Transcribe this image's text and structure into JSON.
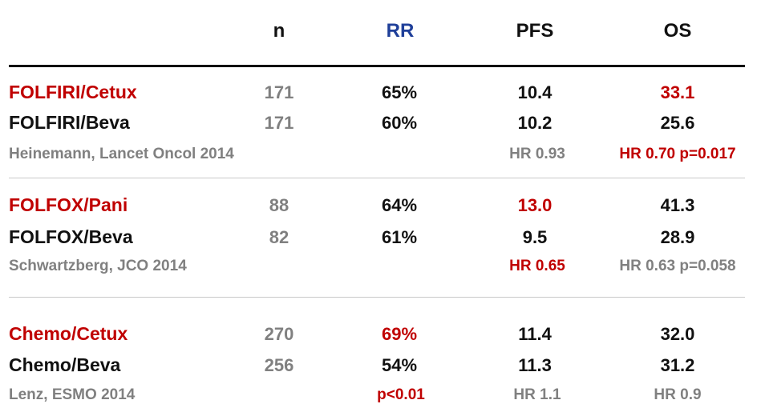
{
  "colors": {
    "red": "#c00000",
    "black": "#111111",
    "gray": "#808080",
    "blue": "#1f3f99"
  },
  "headers": {
    "n": "n",
    "rr": "RR",
    "pfs": "PFS",
    "os": "OS"
  },
  "groups": [
    {
      "arms": [
        {
          "name": "FOLFIRI/Cetux",
          "n": "171",
          "rr": "65%",
          "pfs": "10.4",
          "os": "33.1"
        },
        {
          "name": "FOLFIRI/Beva",
          "n": "171",
          "rr": "60%",
          "pfs": "10.2",
          "os": "25.6"
        }
      ],
      "citation": "Heinemann, Lancet Oncol 2014",
      "stats": {
        "rr": "",
        "pfs": "HR 0.93",
        "os": "HR 0.70 p=0.017"
      }
    },
    {
      "arms": [
        {
          "name": "FOLFOX/Pani",
          "n": "88",
          "rr": "64%",
          "pfs": "13.0",
          "os": "41.3"
        },
        {
          "name": "FOLFOX/Beva",
          "n": "82",
          "rr": "61%",
          "pfs": "9.5",
          "os": "28.9"
        }
      ],
      "citation": "Schwartzberg, JCO 2014",
      "stats": {
        "rr": "",
        "pfs": "HR 0.65",
        "os": "HR 0.63 p=0.058"
      }
    },
    {
      "arms": [
        {
          "name": "Chemo/Cetux",
          "n": "270",
          "rr": "69%",
          "pfs": "11.4",
          "os": "32.0"
        },
        {
          "name": "Chemo/Beva",
          "n": "256",
          "rr": "54%",
          "pfs": "11.3",
          "os": "31.2"
        }
      ],
      "citation": "Lenz, ESMO 2014",
      "stats": {
        "rr": "p<0.01",
        "pfs": "HR 1.1",
        "os": "HR 0.9"
      }
    }
  ]
}
